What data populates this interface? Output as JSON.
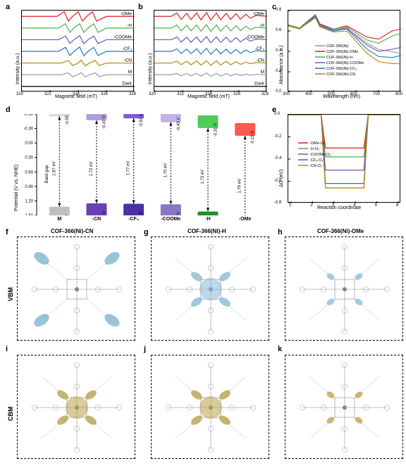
{
  "labels": {
    "a": "a",
    "b": "b",
    "c": "c",
    "d": "d",
    "e": "e",
    "f": "f",
    "g": "g",
    "h": "h",
    "i": "i",
    "j": "j",
    "k": "k"
  },
  "epr": {
    "type": "line-stack",
    "xlabel": "Magnetic field (mT)",
    "ylabel": "Intensity (a.u.)",
    "xlim": [
      320,
      328
    ],
    "xticks": [
      320,
      322,
      324,
      326,
      328
    ],
    "series_labels": [
      "-OMe",
      "-H",
      "-COOMe",
      "-CF₃",
      "-CN",
      "M",
      "Dark"
    ],
    "colors": [
      "#e41a1c",
      "#4daf4a",
      "#7a4fbf",
      "#1f78b4",
      "#b8860b",
      "#999999",
      "#000000"
    ],
    "pointsA": [
      [
        [
          320,
          0
        ],
        [
          322.5,
          0
        ],
        [
          323,
          3
        ],
        [
          323.3,
          -3
        ],
        [
          323.6,
          0
        ],
        [
          324,
          3
        ],
        [
          324.3,
          -3
        ],
        [
          324.6,
          0
        ],
        [
          325,
          3
        ],
        [
          325.3,
          -3
        ],
        [
          326,
          0
        ],
        [
          328,
          0
        ]
      ],
      [
        [
          320,
          0
        ],
        [
          322.6,
          0
        ],
        [
          323.1,
          2.8
        ],
        [
          323.4,
          -2.8
        ],
        [
          323.7,
          0
        ],
        [
          324.1,
          2.8
        ],
        [
          324.4,
          -2.8
        ],
        [
          324.7,
          0
        ],
        [
          325.1,
          2.8
        ],
        [
          325.4,
          -2.8
        ],
        [
          326,
          0
        ],
        [
          328,
          0
        ]
      ],
      [
        [
          320,
          0
        ],
        [
          322.6,
          0
        ],
        [
          323.1,
          2.4
        ],
        [
          323.4,
          -2.4
        ],
        [
          323.7,
          0
        ],
        [
          324.1,
          2.6
        ],
        [
          324.4,
          -2.6
        ],
        [
          324.7,
          0
        ],
        [
          325.1,
          2.4
        ],
        [
          325.4,
          -2.4
        ],
        [
          326,
          0
        ],
        [
          328,
          0
        ]
      ],
      [
        [
          320,
          0
        ],
        [
          322.6,
          0
        ],
        [
          323.1,
          2.6
        ],
        [
          323.4,
          -2.6
        ],
        [
          323.7,
          0
        ],
        [
          324.1,
          2.8
        ],
        [
          324.4,
          -2.8
        ],
        [
          324.7,
          0
        ],
        [
          325.1,
          2.6
        ],
        [
          325.4,
          -2.6
        ],
        [
          326,
          0
        ],
        [
          328,
          0
        ]
      ],
      [
        [
          320,
          0
        ],
        [
          322.8,
          0
        ],
        [
          323.3,
          1.6
        ],
        [
          323.6,
          -1.6
        ],
        [
          324.0,
          0
        ],
        [
          324.2,
          1.8
        ],
        [
          324.5,
          -1.8
        ],
        [
          324.8,
          0
        ],
        [
          325.2,
          1.6
        ],
        [
          325.5,
          -1.6
        ],
        [
          326,
          0
        ],
        [
          328,
          0
        ]
      ],
      [
        [
          320,
          0
        ],
        [
          322.8,
          0
        ],
        [
          323.3,
          1.2
        ],
        [
          323.6,
          -1.2
        ],
        [
          324.0,
          0
        ],
        [
          324.2,
          1.4
        ],
        [
          324.5,
          -1.4
        ],
        [
          324.8,
          0
        ],
        [
          325.2,
          1.2
        ],
        [
          325.5,
          -1.2
        ],
        [
          326,
          0
        ],
        [
          328,
          0
        ]
      ],
      [
        [
          320,
          0
        ],
        [
          328,
          0
        ]
      ]
    ],
    "pointsB": [
      [
        [
          320,
          0
        ],
        [
          321.2,
          0
        ],
        [
          321.6,
          2.2
        ],
        [
          321.9,
          -2
        ],
        [
          322.3,
          2
        ],
        [
          322.6,
          -2
        ],
        [
          323,
          2.2
        ],
        [
          323.3,
          -2.2
        ],
        [
          323.7,
          2.4
        ],
        [
          324,
          -2.4
        ],
        [
          324.4,
          2.2
        ],
        [
          324.7,
          -2.2
        ],
        [
          325.1,
          2
        ],
        [
          325.4,
          -2
        ],
        [
          325.8,
          1.8
        ],
        [
          326.1,
          -1.8
        ],
        [
          326.5,
          1.4
        ],
        [
          326.8,
          -1.2
        ],
        [
          327.2,
          0.6
        ],
        [
          328,
          0
        ]
      ],
      [
        [
          320,
          0
        ],
        [
          321.2,
          0
        ],
        [
          321.6,
          2.0
        ],
        [
          321.9,
          -1.8
        ],
        [
          322.3,
          1.8
        ],
        [
          322.6,
          -1.8
        ],
        [
          323,
          2.0
        ],
        [
          323.3,
          -2.0
        ],
        [
          323.7,
          2.2
        ],
        [
          324,
          -2.2
        ],
        [
          324.4,
          2.0
        ],
        [
          324.7,
          -2.0
        ],
        [
          325.1,
          1.8
        ],
        [
          325.4,
          -1.8
        ],
        [
          325.8,
          1.6
        ],
        [
          326.1,
          -1.6
        ],
        [
          326.5,
          1.2
        ],
        [
          326.8,
          -1.0
        ],
        [
          327.2,
          0.5
        ],
        [
          328,
          0
        ]
      ],
      [
        [
          320,
          0
        ],
        [
          321.2,
          0
        ],
        [
          321.6,
          1.7
        ],
        [
          321.9,
          -1.5
        ],
        [
          322.3,
          1.6
        ],
        [
          322.6,
          -1.6
        ],
        [
          323,
          1.8
        ],
        [
          323.3,
          -1.8
        ],
        [
          323.7,
          2.0
        ],
        [
          324,
          -2.0
        ],
        [
          324.4,
          1.8
        ],
        [
          324.7,
          -1.8
        ],
        [
          325.1,
          1.6
        ],
        [
          325.4,
          -1.6
        ],
        [
          325.8,
          1.4
        ],
        [
          326.1,
          -1.4
        ],
        [
          326.5,
          1.0
        ],
        [
          326.8,
          -0.9
        ],
        [
          327.2,
          0.4
        ],
        [
          328,
          0
        ]
      ],
      [
        [
          320,
          0
        ],
        [
          321.2,
          0
        ],
        [
          321.6,
          1.6
        ],
        [
          321.9,
          -1.4
        ],
        [
          322.3,
          1.5
        ],
        [
          322.6,
          -1.5
        ],
        [
          323,
          1.7
        ],
        [
          323.3,
          -1.7
        ],
        [
          323.7,
          1.9
        ],
        [
          324,
          -1.9
        ],
        [
          324.4,
          1.7
        ],
        [
          324.7,
          -1.7
        ],
        [
          325.1,
          1.5
        ],
        [
          325.4,
          -1.5
        ],
        [
          325.8,
          1.3
        ],
        [
          326.1,
          -1.3
        ],
        [
          326.5,
          0.9
        ],
        [
          326.8,
          -0.8
        ],
        [
          327.2,
          0.4
        ],
        [
          328,
          0
        ]
      ],
      [
        [
          320,
          0
        ],
        [
          321.2,
          0
        ],
        [
          321.6,
          1.2
        ],
        [
          321.9,
          -1.0
        ],
        [
          322.3,
          1.1
        ],
        [
          322.6,
          -1.1
        ],
        [
          323,
          1.3
        ],
        [
          323.3,
          -1.3
        ],
        [
          323.7,
          1.5
        ],
        [
          324,
          -1.5
        ],
        [
          324.4,
          1.3
        ],
        [
          324.7,
          -1.3
        ],
        [
          325.1,
          1.1
        ],
        [
          325.4,
          -1.1
        ],
        [
          325.8,
          0.9
        ],
        [
          326.1,
          -0.9
        ],
        [
          326.5,
          0.6
        ],
        [
          326.8,
          -0.5
        ],
        [
          327.2,
          0.3
        ],
        [
          328,
          0
        ]
      ],
      [
        [
          320,
          0
        ],
        [
          321.2,
          0
        ],
        [
          321.6,
          0.8
        ],
        [
          321.9,
          -0.7
        ],
        [
          322.3,
          0.7
        ],
        [
          322.6,
          -0.7
        ],
        [
          323,
          0.9
        ],
        [
          323.3,
          -0.9
        ],
        [
          323.7,
          1.1
        ],
        [
          324,
          -1.1
        ],
        [
          324.4,
          0.9
        ],
        [
          324.7,
          -0.9
        ],
        [
          325.1,
          0.7
        ],
        [
          325.4,
          -0.7
        ],
        [
          325.8,
          0.6
        ],
        [
          326.1,
          -0.6
        ],
        [
          326.5,
          0.4
        ],
        [
          326.8,
          -0.3
        ],
        [
          327.2,
          0.2
        ],
        [
          328,
          0
        ]
      ],
      [
        [
          320,
          0
        ],
        [
          328,
          0
        ]
      ]
    ]
  },
  "uvvis": {
    "type": "line",
    "xlabel": "Wavelength (nm)",
    "ylabel": "Absorbance (a.u.)",
    "xlim": [
      300,
      800
    ],
    "ylim": [
      0.0,
      0.8
    ],
    "xticks": [
      300,
      400,
      500,
      600,
      700,
      800
    ],
    "yticks": [
      0.0,
      0.2,
      0.4,
      0.6,
      0.8
    ],
    "legend": [
      "COF-366(Ni)",
      "COF-366(Ni)-OMe",
      "COF-366(Ni)-H",
      "COF-366(Ni)-COOMe",
      "COF-366(Ni)-CF₃",
      "COF-366(Ni)-CN"
    ],
    "colors": [
      "#999999",
      "#e41a1c",
      "#4daf4a",
      "#7a4fbf",
      "#1f78b4",
      "#b8860b"
    ],
    "data": [
      [
        [
          300,
          0.65
        ],
        [
          350,
          0.62
        ],
        [
          420,
          0.74
        ],
        [
          440,
          0.66
        ],
        [
          500,
          0.6
        ],
        [
          560,
          0.62
        ],
        [
          600,
          0.56
        ],
        [
          650,
          0.48
        ],
        [
          700,
          0.42
        ],
        [
          750,
          0.4
        ],
        [
          800,
          0.38
        ]
      ],
      [
        [
          300,
          0.66
        ],
        [
          350,
          0.63
        ],
        [
          420,
          0.76
        ],
        [
          440,
          0.67
        ],
        [
          500,
          0.62
        ],
        [
          560,
          0.65
        ],
        [
          600,
          0.6
        ],
        [
          650,
          0.54
        ],
        [
          700,
          0.52
        ],
        [
          760,
          0.6
        ],
        [
          800,
          0.62
        ]
      ],
      [
        [
          300,
          0.66
        ],
        [
          350,
          0.63
        ],
        [
          420,
          0.76
        ],
        [
          440,
          0.66
        ],
        [
          500,
          0.62
        ],
        [
          560,
          0.64
        ],
        [
          600,
          0.58
        ],
        [
          650,
          0.51
        ],
        [
          700,
          0.48
        ],
        [
          760,
          0.55
        ],
        [
          800,
          0.58
        ]
      ],
      [
        [
          300,
          0.65
        ],
        [
          350,
          0.62
        ],
        [
          420,
          0.75
        ],
        [
          440,
          0.66
        ],
        [
          500,
          0.61
        ],
        [
          560,
          0.63
        ],
        [
          600,
          0.55
        ],
        [
          650,
          0.46
        ],
        [
          700,
          0.4
        ],
        [
          760,
          0.42
        ],
        [
          800,
          0.44
        ]
      ],
      [
        [
          300,
          0.65
        ],
        [
          350,
          0.62
        ],
        [
          420,
          0.74
        ],
        [
          440,
          0.65
        ],
        [
          500,
          0.6
        ],
        [
          560,
          0.62
        ],
        [
          600,
          0.53
        ],
        [
          650,
          0.42
        ],
        [
          700,
          0.35
        ],
        [
          760,
          0.34
        ],
        [
          800,
          0.36
        ]
      ],
      [
        [
          300,
          0.65
        ],
        [
          350,
          0.62
        ],
        [
          420,
          0.73
        ],
        [
          440,
          0.64
        ],
        [
          500,
          0.59
        ],
        [
          560,
          0.6
        ],
        [
          600,
          0.5
        ],
        [
          650,
          0.38
        ],
        [
          700,
          0.3
        ],
        [
          760,
          0.28
        ],
        [
          800,
          0.28
        ]
      ]
    ]
  },
  "band": {
    "type": "energy-level",
    "ylabel": "Potential (V vs. NHE)",
    "ylim": [
      1.5,
      -0.6
    ],
    "yticks": [
      -0.6,
      -0.3,
      0.0,
      0.3,
      0.6,
      0.9,
      1.2,
      1.5
    ],
    "xcats": [
      "M",
      "-CN",
      "-CF₃",
      "-COOMe",
      "-H",
      "-OMe"
    ],
    "cols": [
      {
        "cb": -0.55,
        "vb": 1.32,
        "gap": "1.87 eV",
        "cb_label": "-0.55 V",
        "vb_label": "1.32 V",
        "color_top": "#d9d9d9",
        "color_bot": "#bfbfbf"
      },
      {
        "cb": -0.47,
        "vb": 1.25,
        "gap": "1.72 eV",
        "cb_label": "-0.47 V",
        "vb_label": "1.25 V",
        "color_top": "#b19cd9",
        "color_bot": "#6a3fb5"
      },
      {
        "cb": -0.51,
        "vb": 1.26,
        "gap": "1.77 eV",
        "cb_label": "-0.51 V",
        "vb_label": "1.26 V",
        "color_top": "#7b5bd6",
        "color_bot": "#4b2fa6"
      },
      {
        "cb": -0.43,
        "vb": 1.27,
        "gap": "1.70 eV",
        "cb_label": "-0.43 V",
        "vb_label": "1.27 V",
        "color_top": "#c0b2e6",
        "color_bot": "#8a76c6"
      },
      {
        "cb": -0.31,
        "vb": 1.42,
        "gap": "1.73 eV",
        "cb_label": "-0.31 V",
        "vb_label": "1.42 V",
        "color_top": "#4dcb5b",
        "color_bot": "#1f8f2e"
      },
      {
        "cb": -0.15,
        "vb": 1.64,
        "gap": "1.79 eV",
        "cb_label": "-0.15 V",
        "vb_label": "1.64 V",
        "color_top": "#ff5a4d",
        "color_bot": "#c62222"
      }
    ],
    "bandgap_label": "Band gap"
  },
  "dg": {
    "type": "step",
    "xlabel": "Reaction coordinate",
    "ylabel": "ΔG (eV)",
    "xlim": [
      1,
      6
    ],
    "ylim": [
      -0.8,
      0.0
    ],
    "xticks": [
      1,
      2,
      3,
      4,
      5,
      6
    ],
    "yticks": [
      -0.8,
      -0.6,
      -0.4,
      -0.2,
      0.0
    ],
    "legend": [
      "-OMe-O₂⁻",
      "-H-O₂⁻",
      "-COOMe-O₂⁻",
      "-CF₃-O₂⁻",
      "-CN-O₂⁻"
    ],
    "colors": [
      "#e41a1c",
      "#4daf4a",
      "#7a4fbf",
      "#1f78b4",
      "#b8860b"
    ],
    "data": [
      [
        0.0,
        0.0,
        -0.3,
        -0.3,
        0.0,
        0.0
      ],
      [
        0.0,
        0.0,
        -0.38,
        -0.38,
        0.0,
        0.0
      ],
      [
        0.0,
        0.0,
        -0.5,
        -0.5,
        0.0,
        0.0
      ],
      [
        0.0,
        0.0,
        -0.62,
        -0.62,
        0.0,
        0.0
      ],
      [
        0.0,
        0.0,
        -0.66,
        -0.66,
        0.0,
        0.0
      ]
    ]
  },
  "molpanels": {
    "row_labels": {
      "vbm": "VBM",
      "cbm": "CBM"
    },
    "titles": {
      "f": "COF-366(Ni)-CN",
      "g": "COF-366(Ni)-H",
      "h": "COF-366(Ni)-OMe"
    },
    "lobe_colors": {
      "vbm": "#87b9d4",
      "cbm": "#b8a04a"
    }
  }
}
